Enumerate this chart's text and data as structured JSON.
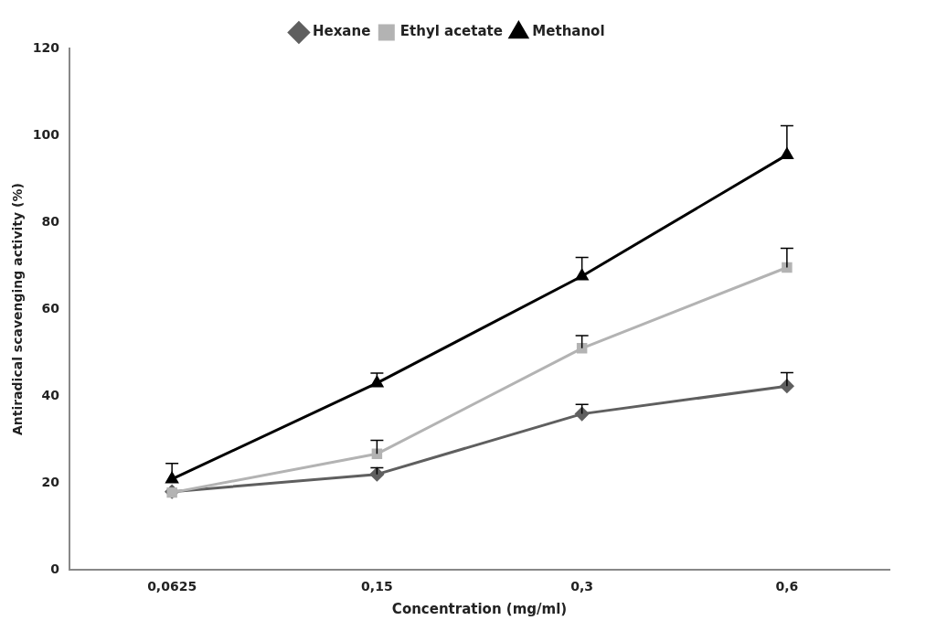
{
  "chart_data": {
    "type": "line",
    "xlabel": "Concentration (mg/ml)",
    "ylabel": "Antiradical scavenging activity (%)",
    "categories": [
      "0,0625",
      "0,15",
      "0,3",
      "0,6"
    ],
    "series": [
      {
        "name": "Hexane",
        "color": "#5f5f5f",
        "marker": "diamond",
        "values": [
          18.0,
          22.0,
          35.9,
          42.3
        ],
        "errors": [
          null,
          [
            22.0,
            23.5
          ],
          [
            35.9,
            38.1
          ],
          [
            42.3,
            45.4
          ]
        ]
      },
      {
        "name": "Ethyl acetate",
        "color": "#b3b3b3",
        "marker": "square",
        "values": [
          17.8,
          26.7,
          51.0,
          69.6
        ],
        "errors": [
          null,
          [
            26.7,
            29.8
          ],
          [
            51.0,
            53.9
          ],
          [
            69.6,
            74.0
          ]
        ]
      },
      {
        "name": "Methanol",
        "color": "#000000",
        "marker": "triangle",
        "values": [
          20.9,
          43.0,
          67.6,
          95.5
        ],
        "errors": [
          [
            20.9,
            24.5
          ],
          [
            43.0,
            45.3
          ],
          [
            67.6,
            71.9
          ],
          [
            95.5,
            102.2
          ]
        ]
      }
    ],
    "ylim": [
      0,
      120
    ],
    "yticks": [
      0,
      20,
      40,
      60,
      80,
      100,
      120
    ],
    "grid": false,
    "legend": "top",
    "line_style": "solid"
  }
}
